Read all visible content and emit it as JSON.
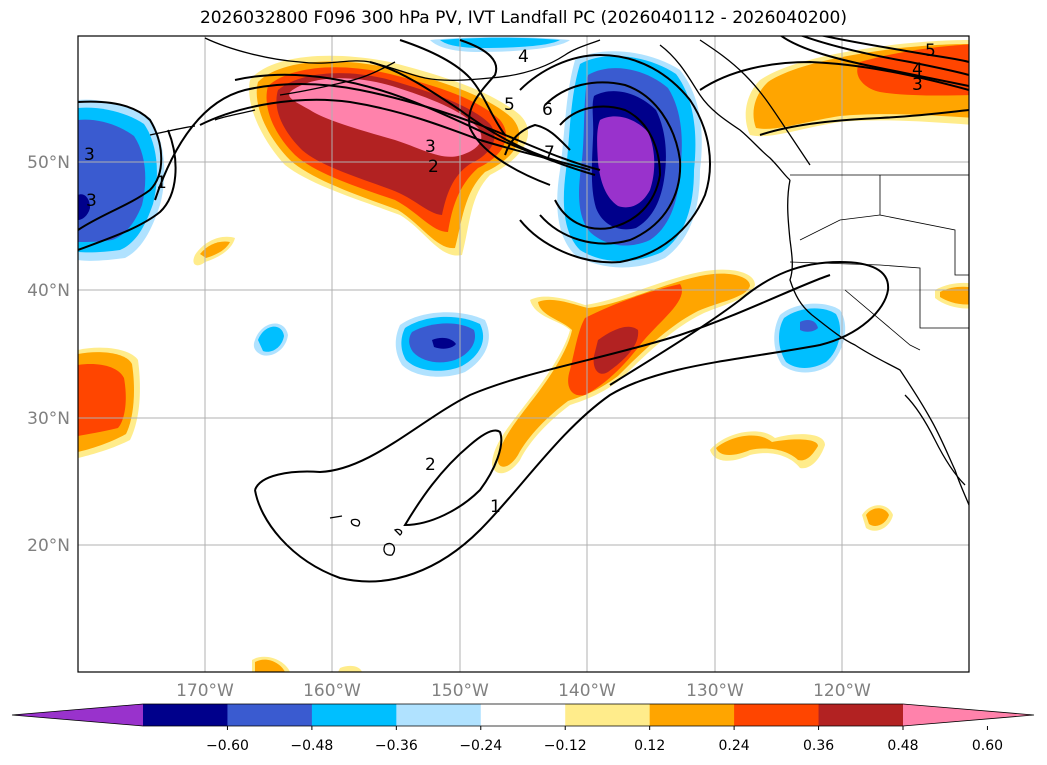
{
  "title": "2026032800 F096 300 hPa PV, IVT Landfall PC (2026040112 - 2026040200)",
  "lat_labels": [
    "50°N",
    "40°N",
    "30°N",
    "20°N"
  ],
  "lon_labels": [
    "170°W",
    "160°W",
    "150°W",
    "140°W",
    "130°W",
    "120°W"
  ],
  "colorbar": {
    "ticks": [
      "−0.60",
      "−0.48",
      "−0.36",
      "−0.24",
      "−0.12",
      "0.12",
      "0.24",
      "0.36",
      "0.48",
      "0.60"
    ],
    "colors": [
      "#9932cc",
      "#00008b",
      "#3a5bd0",
      "#00bfff",
      "#b0e2ff",
      "#ffffff",
      "#ffec8b",
      "#ffa500",
      "#ff4500",
      "#b22222",
      "#ff82ab"
    ]
  },
  "contour_labels": [
    "3",
    "3",
    "4",
    "5",
    "4",
    "3",
    "2",
    "3",
    "5",
    "6",
    "7",
    "1",
    "2",
    "1"
  ],
  "colors": {
    "axis": "#000000",
    "grid": "#b0b0b0",
    "tick_text": "#808080"
  }
}
